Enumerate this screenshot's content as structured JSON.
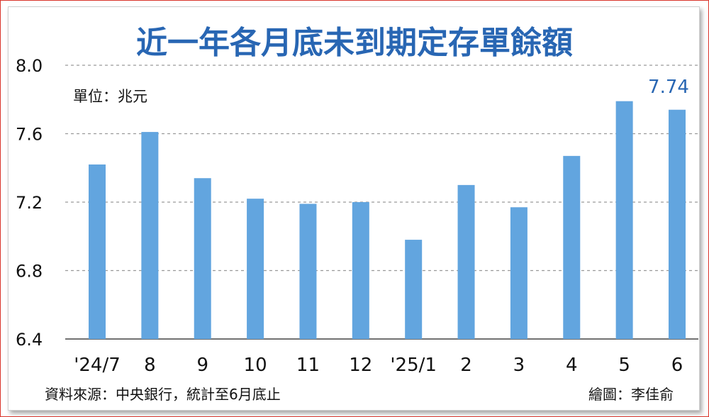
{
  "chart_data": {
    "type": "bar",
    "title": "近一年各月底未到期定存單餘額",
    "unit_label": "單位：兆元",
    "categories": [
      "'24/7",
      "8",
      "9",
      "10",
      "11",
      "12",
      "'25/1",
      "2",
      "3",
      "4",
      "5",
      "6"
    ],
    "values": [
      7.42,
      7.61,
      7.34,
      7.22,
      7.19,
      7.2,
      6.98,
      7.3,
      7.17,
      7.47,
      7.79,
      7.74
    ],
    "yticks": [
      "6.4",
      "6.8",
      "7.2",
      "7.6",
      "8.0"
    ],
    "ylim": [
      6.4,
      8.0
    ],
    "highlight_label": "7.74",
    "grid": true,
    "bar_color": "#62a5df",
    "title_color": "#2866b3"
  },
  "footer": {
    "source": "資料來源：中央銀行，統計至6月底止",
    "credit": "繪圖：李佳俞"
  }
}
